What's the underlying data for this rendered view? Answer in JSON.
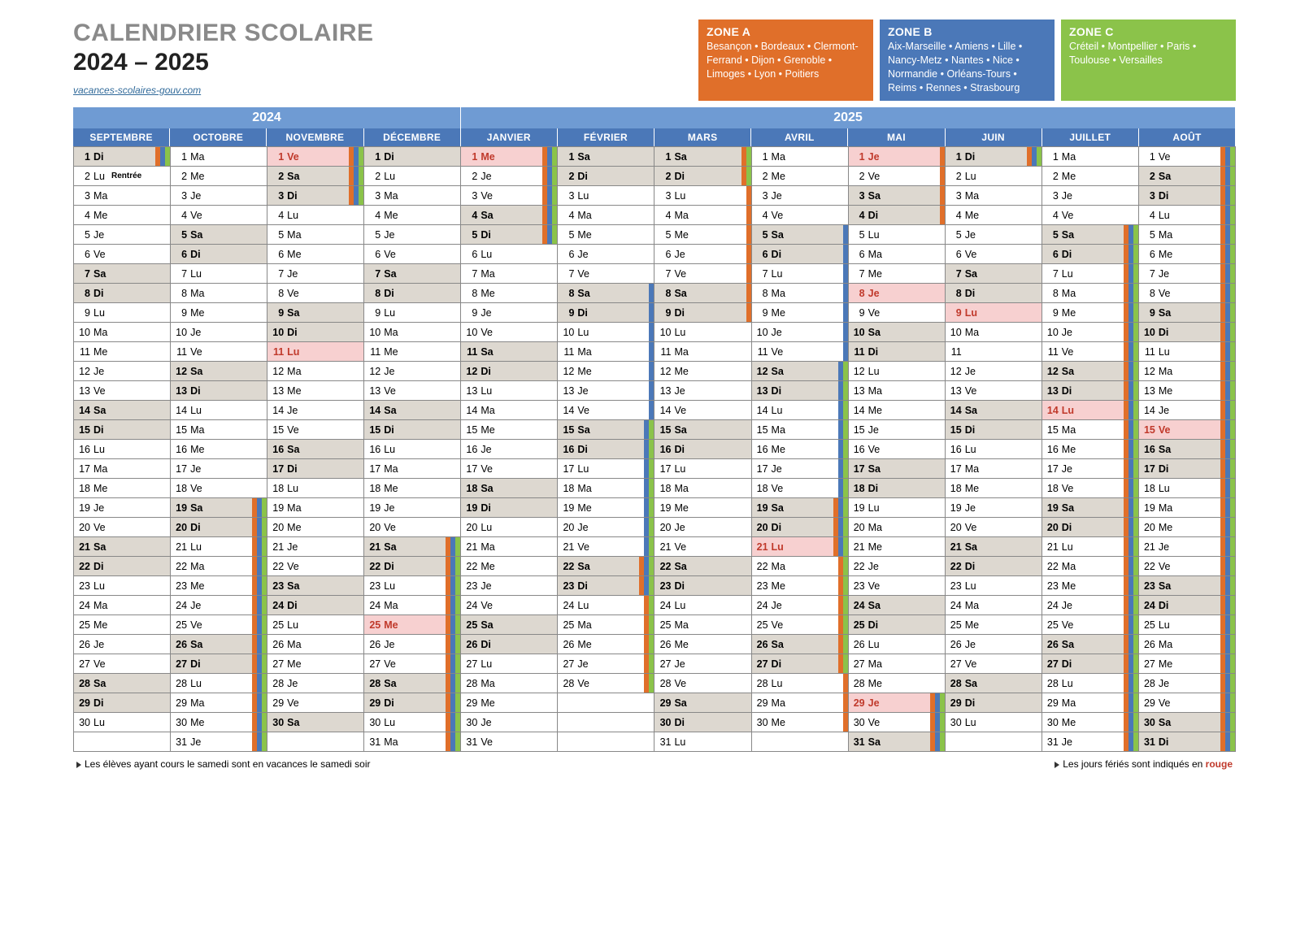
{
  "colors": {
    "zoneA": "#e06f2a",
    "zoneB": "#4b78b8",
    "zoneC": "#8bc34a",
    "yearHeader2024": "#6f9bd3",
    "yearHeader2025": "#6f9bd3",
    "monthHeader": "#4b78b8",
    "weekend": "#ddd8d0",
    "holiday": "#f7d0d0",
    "holidayText": "#c0392b"
  },
  "title": "CALENDRIER SCOLAIRE",
  "yearRange": "2024 – 2025",
  "sourceLink": "vacances-scolaires-gouv.com",
  "zones": [
    {
      "key": "A",
      "title": "ZONE A",
      "text": "Besançon • Bordeaux • Clermont-Ferrand • Dijon • Grenoble • Limoges • Lyon • Poitiers",
      "color": "#e06f2a"
    },
    {
      "key": "B",
      "title": "ZONE B",
      "text": "Aix-Marseille • Amiens • Lille • Nancy-Metz • Nantes • Nice • Normandie • Orléans-Tours • Reims • Rennes • Strasbourg",
      "color": "#4b78b8"
    },
    {
      "key": "C",
      "title": "ZONE C",
      "text": "Créteil • Montpellier • Paris • Toulouse • Versailles",
      "color": "#8bc34a"
    }
  ],
  "yearHeaders": [
    {
      "label": "2024",
      "span": 4,
      "color": "#6f9bd3"
    },
    {
      "label": "2025",
      "span": 8,
      "color": "#6f9bd3"
    }
  ],
  "months": [
    {
      "name": "SEPTEMBRE",
      "year": 2024,
      "days": 30,
      "startDow": 0
    },
    {
      "name": "OCTOBRE",
      "year": 2024,
      "days": 31,
      "startDow": 2
    },
    {
      "name": "NOVEMBRE",
      "year": 2024,
      "days": 30,
      "startDow": 5
    },
    {
      "name": "DÉCEMBRE",
      "year": 2024,
      "days": 31,
      "startDow": 0
    },
    {
      "name": "JANVIER",
      "year": 2025,
      "days": 31,
      "startDow": 3
    },
    {
      "name": "FÉVRIER",
      "year": 2025,
      "days": 28,
      "startDow": 6
    },
    {
      "name": "MARS",
      "year": 2025,
      "days": 31,
      "startDow": 6
    },
    {
      "name": "AVRIL",
      "year": 2025,
      "days": 30,
      "startDow": 2
    },
    {
      "name": "MAI",
      "year": 2025,
      "days": 31,
      "startDow": 4
    },
    {
      "name": "JUIN",
      "year": 2025,
      "days": 30,
      "startDow": 0
    },
    {
      "name": "JUILLET",
      "year": 2025,
      "days": 31,
      "startDow": 2
    },
    {
      "name": "AOÛT",
      "year": 2025,
      "days": 31,
      "startDow": 5
    }
  ],
  "dayAbbr": [
    "Di",
    "Lu",
    "Ma",
    "Me",
    "Je",
    "Ve",
    "Sa"
  ],
  "holidays": {
    "NOVEMBRE": [
      1,
      11
    ],
    "DÉCEMBRE": [
      25
    ],
    "JANVIER": [
      1
    ],
    "AVRIL": [
      21
    ],
    "MAI": [
      1,
      8,
      29
    ],
    "JUIN": [
      9
    ],
    "JUILLET": [
      14
    ],
    "AOÛT": [
      15
    ]
  },
  "notes": {
    "SEPTEMBRE": {
      "2": "Rentrée"
    }
  },
  "hideDayAbbr": {
    "JUIN": [
      11
    ]
  },
  "vacations": {
    "SEPTEMBRE": {
      "1": [
        "A",
        "B",
        "C"
      ]
    },
    "OCTOBRE": {
      "19": [
        "A",
        "B",
        "C"
      ],
      "20": [
        "A",
        "B",
        "C"
      ],
      "21": [
        "A",
        "B",
        "C"
      ],
      "22": [
        "A",
        "B",
        "C"
      ],
      "23": [
        "A",
        "B",
        "C"
      ],
      "24": [
        "A",
        "B",
        "C"
      ],
      "25": [
        "A",
        "B",
        "C"
      ],
      "26": [
        "A",
        "B",
        "C"
      ],
      "27": [
        "A",
        "B",
        "C"
      ],
      "28": [
        "A",
        "B",
        "C"
      ],
      "29": [
        "A",
        "B",
        "C"
      ],
      "30": [
        "A",
        "B",
        "C"
      ],
      "31": [
        "A",
        "B",
        "C"
      ]
    },
    "NOVEMBRE": {
      "1": [
        "A",
        "B",
        "C"
      ],
      "2": [
        "A",
        "B",
        "C"
      ],
      "3": [
        "A",
        "B",
        "C"
      ]
    },
    "DÉCEMBRE": {
      "21": [
        "A",
        "B",
        "C"
      ],
      "22": [
        "A",
        "B",
        "C"
      ],
      "23": [
        "A",
        "B",
        "C"
      ],
      "24": [
        "A",
        "B",
        "C"
      ],
      "25": [
        "A",
        "B",
        "C"
      ],
      "26": [
        "A",
        "B",
        "C"
      ],
      "27": [
        "A",
        "B",
        "C"
      ],
      "28": [
        "A",
        "B",
        "C"
      ],
      "29": [
        "A",
        "B",
        "C"
      ],
      "30": [
        "A",
        "B",
        "C"
      ],
      "31": [
        "A",
        "B",
        "C"
      ]
    },
    "JANVIER": {
      "1": [
        "A",
        "B",
        "C"
      ],
      "2": [
        "A",
        "B",
        "C"
      ],
      "3": [
        "A",
        "B",
        "C"
      ],
      "4": [
        "A",
        "B",
        "C"
      ],
      "5": [
        "A",
        "B",
        "C"
      ]
    },
    "FÉVRIER": {
      "8": [
        "B"
      ],
      "9": [
        "B"
      ],
      "10": [
        "B"
      ],
      "11": [
        "B"
      ],
      "12": [
        "B"
      ],
      "13": [
        "B"
      ],
      "14": [
        "B"
      ],
      "15": [
        "B",
        "C"
      ],
      "16": [
        "B",
        "C"
      ],
      "17": [
        "B",
        "C"
      ],
      "18": [
        "B",
        "C"
      ],
      "19": [
        "B",
        "C"
      ],
      "20": [
        "B",
        "C"
      ],
      "21": [
        "B",
        "C"
      ],
      "22": [
        "A",
        "B",
        "C"
      ],
      "23": [
        "A",
        "B",
        "C"
      ],
      "24": [
        "A",
        "C"
      ],
      "25": [
        "A",
        "C"
      ],
      "26": [
        "A",
        "C"
      ],
      "27": [
        "A",
        "C"
      ],
      "28": [
        "A",
        "C"
      ]
    },
    "MARS": {
      "1": [
        "A",
        "C"
      ],
      "2": [
        "A",
        "C"
      ],
      "3": [
        "A"
      ],
      "4": [
        "A"
      ],
      "5": [
        "A"
      ],
      "6": [
        "A"
      ],
      "7": [
        "A"
      ],
      "8": [
        "A"
      ],
      "9": [
        "A"
      ]
    },
    "AVRIL": {
      "5": [
        "B"
      ],
      "6": [
        "B"
      ],
      "7": [
        "B"
      ],
      "8": [
        "B"
      ],
      "9": [
        "B"
      ],
      "10": [
        "B"
      ],
      "11": [
        "B"
      ],
      "12": [
        "B",
        "C"
      ],
      "13": [
        "B",
        "C"
      ],
      "14": [
        "B",
        "C"
      ],
      "15": [
        "B",
        "C"
      ],
      "16": [
        "B",
        "C"
      ],
      "17": [
        "B",
        "C"
      ],
      "18": [
        "B",
        "C"
      ],
      "19": [
        "A",
        "B",
        "C"
      ],
      "20": [
        "A",
        "B",
        "C"
      ],
      "21": [
        "A",
        "B",
        "C"
      ],
      "22": [
        "A",
        "C"
      ],
      "23": [
        "A",
        "C"
      ],
      "24": [
        "A",
        "C"
      ],
      "25": [
        "A",
        "C"
      ],
      "26": [
        "A",
        "C"
      ],
      "27": [
        "A",
        "C"
      ],
      "28": [
        "A"
      ],
      "29": [
        "A"
      ],
      "30": [
        "A"
      ]
    },
    "MAI": {
      "1": [
        "A"
      ],
      "2": [
        "A"
      ],
      "3": [
        "A"
      ],
      "4": [
        "A"
      ],
      "29": [
        "A",
        "B",
        "C"
      ],
      "30": [
        "A",
        "B",
        "C"
      ],
      "31": [
        "A",
        "B",
        "C"
      ]
    },
    "JUIN": {
      "1": [
        "A",
        "B",
        "C"
      ]
    },
    "JUILLET": {
      "5": [
        "A",
        "B",
        "C"
      ],
      "6": [
        "A",
        "B",
        "C"
      ],
      "7": [
        "A",
        "B",
        "C"
      ],
      "8": [
        "A",
        "B",
        "C"
      ],
      "9": [
        "A",
        "B",
        "C"
      ],
      "10": [
        "A",
        "B",
        "C"
      ],
      "11": [
        "A",
        "B",
        "C"
      ],
      "12": [
        "A",
        "B",
        "C"
      ],
      "13": [
        "A",
        "B",
        "C"
      ],
      "14": [
        "A",
        "B",
        "C"
      ],
      "15": [
        "A",
        "B",
        "C"
      ],
      "16": [
        "A",
        "B",
        "C"
      ],
      "17": [
        "A",
        "B",
        "C"
      ],
      "18": [
        "A",
        "B",
        "C"
      ],
      "19": [
        "A",
        "B",
        "C"
      ],
      "20": [
        "A",
        "B",
        "C"
      ],
      "21": [
        "A",
        "B",
        "C"
      ],
      "22": [
        "A",
        "B",
        "C"
      ],
      "23": [
        "A",
        "B",
        "C"
      ],
      "24": [
        "A",
        "B",
        "C"
      ],
      "25": [
        "A",
        "B",
        "C"
      ],
      "26": [
        "A",
        "B",
        "C"
      ],
      "27": [
        "A",
        "B",
        "C"
      ],
      "28": [
        "A",
        "B",
        "C"
      ],
      "29": [
        "A",
        "B",
        "C"
      ],
      "30": [
        "A",
        "B",
        "C"
      ],
      "31": [
        "A",
        "B",
        "C"
      ]
    },
    "AOÛT": {
      "1": [
        "A",
        "B",
        "C"
      ],
      "2": [
        "A",
        "B",
        "C"
      ],
      "3": [
        "A",
        "B",
        "C"
      ],
      "4": [
        "A",
        "B",
        "C"
      ],
      "5": [
        "A",
        "B",
        "C"
      ],
      "6": [
        "A",
        "B",
        "C"
      ],
      "7": [
        "A",
        "B",
        "C"
      ],
      "8": [
        "A",
        "B",
        "C"
      ],
      "9": [
        "A",
        "B",
        "C"
      ],
      "10": [
        "A",
        "B",
        "C"
      ],
      "11": [
        "A",
        "B",
        "C"
      ],
      "12": [
        "A",
        "B",
        "C"
      ],
      "13": [
        "A",
        "B",
        "C"
      ],
      "14": [
        "A",
        "B",
        "C"
      ],
      "15": [
        "A",
        "B",
        "C"
      ],
      "16": [
        "A",
        "B",
        "C"
      ],
      "17": [
        "A",
        "B",
        "C"
      ],
      "18": [
        "A",
        "B",
        "C"
      ],
      "19": [
        "A",
        "B",
        "C"
      ],
      "20": [
        "A",
        "B",
        "C"
      ],
      "21": [
        "A",
        "B",
        "C"
      ],
      "22": [
        "A",
        "B",
        "C"
      ],
      "23": [
        "A",
        "B",
        "C"
      ],
      "24": [
        "A",
        "B",
        "C"
      ],
      "25": [
        "A",
        "B",
        "C"
      ],
      "26": [
        "A",
        "B",
        "C"
      ],
      "27": [
        "A",
        "B",
        "C"
      ],
      "28": [
        "A",
        "B",
        "C"
      ],
      "29": [
        "A",
        "B",
        "C"
      ],
      "30": [
        "A",
        "B",
        "C"
      ],
      "31": [
        "A",
        "B",
        "C"
      ]
    }
  },
  "noteLeft": "Les élèves ayant cours le samedi sont en vacances le samedi soir",
  "noteRightPrefix": "Les jours fériés sont indiqués en ",
  "noteRightRed": "rouge"
}
